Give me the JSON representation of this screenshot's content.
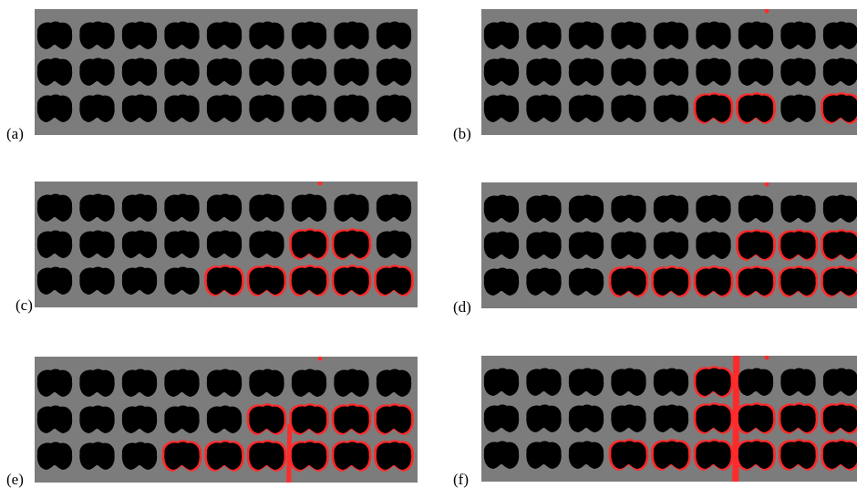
{
  "panels": [
    {
      "label": "(a)",
      "red": []
    },
    {
      "label": "(b)",
      "red": [
        [
          2,
          5
        ],
        [
          2,
          6
        ],
        [
          2,
          8
        ]
      ],
      "dot": 6
    },
    {
      "label": "(c)",
      "red": [
        [
          1,
          6
        ],
        [
          1,
          7
        ],
        [
          2,
          4
        ],
        [
          2,
          5
        ],
        [
          2,
          6
        ],
        [
          2,
          7
        ],
        [
          2,
          8
        ]
      ],
      "dot": 6
    },
    {
      "label": "(d)",
      "red": [
        [
          1,
          6
        ],
        [
          1,
          7
        ],
        [
          1,
          8
        ],
        [
          2,
          3
        ],
        [
          2,
          4
        ],
        [
          2,
          5
        ],
        [
          2,
          6
        ],
        [
          2,
          7
        ],
        [
          2,
          8
        ]
      ],
      "dot": 6
    },
    {
      "label": "(e)",
      "red": [
        [
          1,
          5
        ],
        [
          1,
          6
        ],
        [
          1,
          7
        ],
        [
          1,
          8
        ],
        [
          2,
          3
        ],
        [
          2,
          4
        ],
        [
          2,
          5
        ],
        [
          2,
          6
        ],
        [
          2,
          7
        ],
        [
          2,
          8
        ]
      ],
      "dot": 6,
      "crack": 5
    },
    {
      "label": "(f)",
      "red": [
        [
          0,
          5
        ],
        [
          1,
          5
        ],
        [
          1,
          6
        ],
        [
          1,
          7
        ],
        [
          1,
          8
        ],
        [
          2,
          3
        ],
        [
          2,
          4
        ],
        [
          2,
          5
        ],
        [
          2,
          6
        ],
        [
          2,
          7
        ],
        [
          2,
          8
        ]
      ],
      "dot": 6,
      "crack": 5,
      "heavy": true
    }
  ],
  "colors": {
    "background": "#7c7c7c",
    "hole": "#000000",
    "front": "#ff2a2a"
  }
}
